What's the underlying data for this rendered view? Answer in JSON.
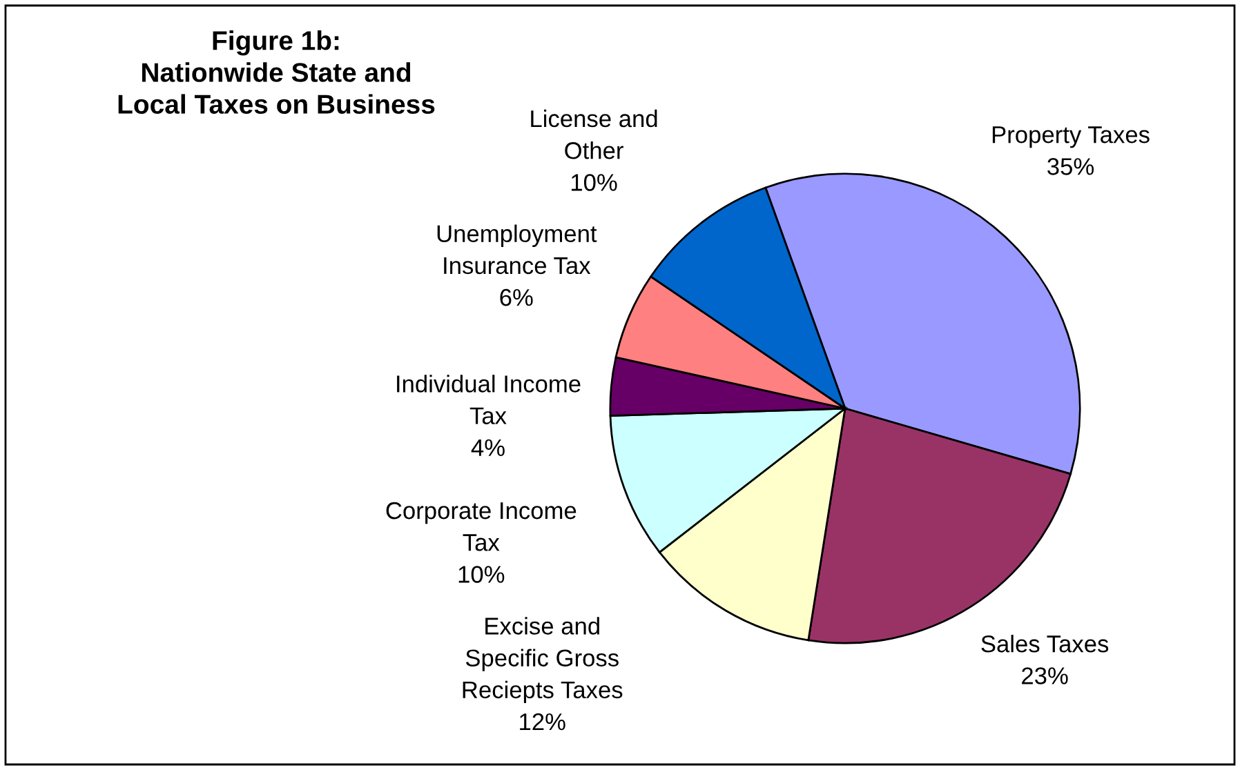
{
  "chart_data": {
    "type": "pie",
    "title": "Figure 1b:\nNationwide State and\nLocal Taxes on Business",
    "categories": [
      "Property Taxes",
      "Sales Taxes",
      "Excise and\nSpecific Gross\nReciepts Taxes",
      "Corporate Income\nTax",
      "Individual Income\nTax",
      "Unemployment\nInsurance Tax",
      "License and\nOther"
    ],
    "values": [
      35,
      23,
      12,
      10,
      4,
      6,
      10
    ],
    "value_labels": [
      "35%",
      "23%",
      "12%",
      "10%",
      "4%",
      "6%",
      "10%"
    ],
    "colors": [
      "#9999ff",
      "#993366",
      "#ffffcc",
      "#ccffff",
      "#660066",
      "#ff8080",
      "#0066cc"
    ],
    "legend": false
  }
}
